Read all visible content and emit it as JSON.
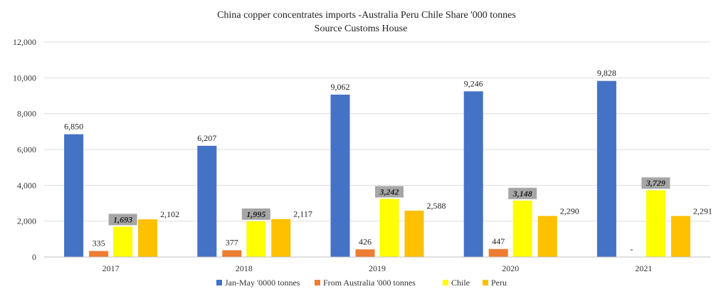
{
  "chart_data": {
    "type": "bar",
    "title": "China copper concentrates imports  -Australia Peru Chile Share '000 tonnes",
    "subtitle": "Source Customs House",
    "categories": [
      "2017",
      "2018",
      "2019",
      "2020",
      "2021"
    ],
    "ylim": [
      0,
      12000
    ],
    "yticks": [
      0,
      2000,
      4000,
      6000,
      8000,
      10000,
      12000
    ],
    "ytick_labels": [
      "0",
      "2,000",
      "4,000",
      "6,000",
      "8,000",
      "10,000",
      "12,000"
    ],
    "grid": true,
    "legend_position": "bottom",
    "series": [
      {
        "name": "Jan-May '0000 tonnes",
        "color": "#4472c4",
        "values": [
          6850,
          6207,
          9062,
          9246,
          9828
        ],
        "labels": [
          "6,850",
          "6,207",
          "9,062",
          "9,246",
          "9,828"
        ]
      },
      {
        "name": "From Australia '000 tonnes",
        "color": "#ed7d31",
        "values": [
          335,
          377,
          426,
          447,
          0
        ],
        "labels": [
          "335",
          "377",
          "426",
          "447",
          "-"
        ]
      },
      {
        "name": "Chile",
        "color": "#ffff00",
        "values": [
          1693,
          1995,
          3242,
          3148,
          3729
        ],
        "labels": [
          "1,693",
          "1,995",
          "3,242",
          "3,148",
          "3,729"
        ]
      },
      {
        "name": "Peru",
        "color": "#ffc000",
        "values": [
          2102,
          2117,
          2588,
          2290,
          2291
        ],
        "labels": [
          "2,102",
          "2,117",
          "2,588",
          "2,290",
          "2,291"
        ]
      }
    ]
  }
}
